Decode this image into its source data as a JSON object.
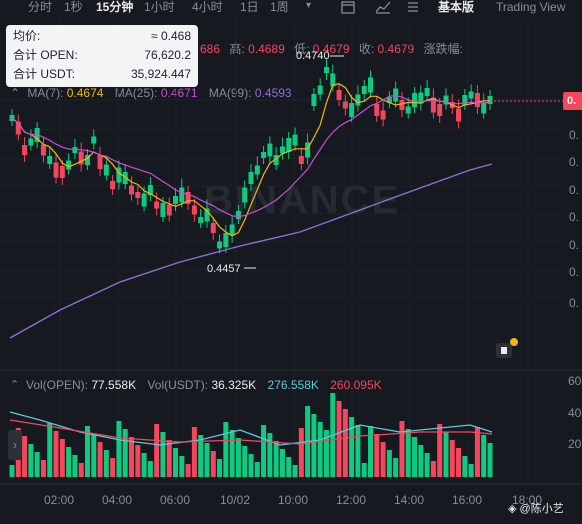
{
  "toolbar": {
    "timeframes": [
      "分时",
      "1秒",
      "15分钟",
      "1小时",
      "4小时",
      "1日",
      "1周"
    ],
    "active_timeframe": "15分钟",
    "basic_view": "基本版",
    "trading_view": "Trading View"
  },
  "tooltip": {
    "avg_label": "均价:",
    "avg_value": "≈ 0.468",
    "open_label": "合计 OPEN:",
    "open_value": "76,620.2",
    "usdt_label": "合计 USDT:",
    "usdt_value": "35,924.447"
  },
  "ohlc": {
    "open_value": "686",
    "high_label": "高:",
    "high_value": "0.4689",
    "low_label": "低:",
    "low_value": "0.4679",
    "close_label": "收:",
    "close_value": "0.4679",
    "change_label": "涨跌幅:"
  },
  "ma": {
    "ma7_label": "MA(7):",
    "ma7_value": "0.4674",
    "ma25_label": "MA(25):",
    "ma25_value": "0.4671",
    "ma99_label": "MA(99):",
    "ma99_value": "0.4593",
    "ma7_color": "#f0b90b",
    "ma25_color": "#c94fd2",
    "ma99_color": "#8e6fd8"
  },
  "volume": {
    "open_label": "Vol(OPEN):",
    "open_value": "77.558K",
    "usdt_label": "Vol(USDT):",
    "usdt_value": "36.325K",
    "ma1_value": "276.558K",
    "ma2_value": "260.095K",
    "ma1_color": "#5fc7d9",
    "ma2_color": "#f6465d"
  },
  "annotations": {
    "high": "0.4740",
    "low": "0.4457"
  },
  "price_tag": "0.",
  "price_axis": [
    "0.",
    "0.",
    "0.",
    "0.",
    "0.",
    "0.",
    "0.",
    "0."
  ],
  "volume_axis": [
    "60",
    "40",
    "20"
  ],
  "time_axis": [
    "02:00",
    "04:00",
    "06:00",
    "10/02",
    "10:00",
    "12:00",
    "14:00",
    "16:00",
    "18:00"
  ],
  "watermark": "BINANCE",
  "footer": "@陈小艺",
  "colors": {
    "up": "#0ecb81",
    "down": "#f6465d",
    "bg": "#16191f"
  }
}
